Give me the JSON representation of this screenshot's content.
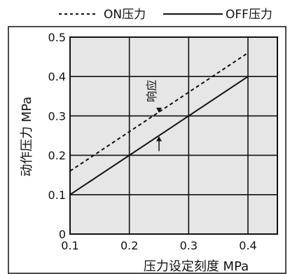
{
  "chart_data": {
    "type": "line",
    "title": "",
    "xlabel": "压力设定刻度 MPa",
    "ylabel": "动作压力 MPa",
    "xlim": [
      0.1,
      0.4
    ],
    "ylim": [
      0,
      0.5
    ],
    "x_ticks": [
      "0.1",
      "0.2",
      "0.3",
      "0.4"
    ],
    "y_ticks": [
      "0",
      "0.1",
      "0.2",
      "0.3",
      "0.4",
      "0.5"
    ],
    "x_tick_values": [
      0.1,
      0.2,
      0.3,
      0.4
    ],
    "y_tick_values": [
      0,
      0.1,
      0.2,
      0.3,
      0.4,
      0.5
    ],
    "grid": true,
    "legend_position": "top",
    "series": [
      {
        "name": "ON压力",
        "style": "dashed",
        "color": "#111111",
        "x": [
          0.1,
          0.4
        ],
        "y": [
          0.16,
          0.46
        ]
      },
      {
        "name": "OFF压力",
        "style": "solid",
        "color": "#111111",
        "x": [
          0.1,
          0.4
        ],
        "y": [
          0.1,
          0.4
        ]
      }
    ],
    "annotations": [
      {
        "text": "响应",
        "x": 0.25,
        "y_from": 0.25,
        "y_to": 0.31
      }
    ],
    "plot_background": "#e6e6e6",
    "frame_color": "#111111"
  }
}
